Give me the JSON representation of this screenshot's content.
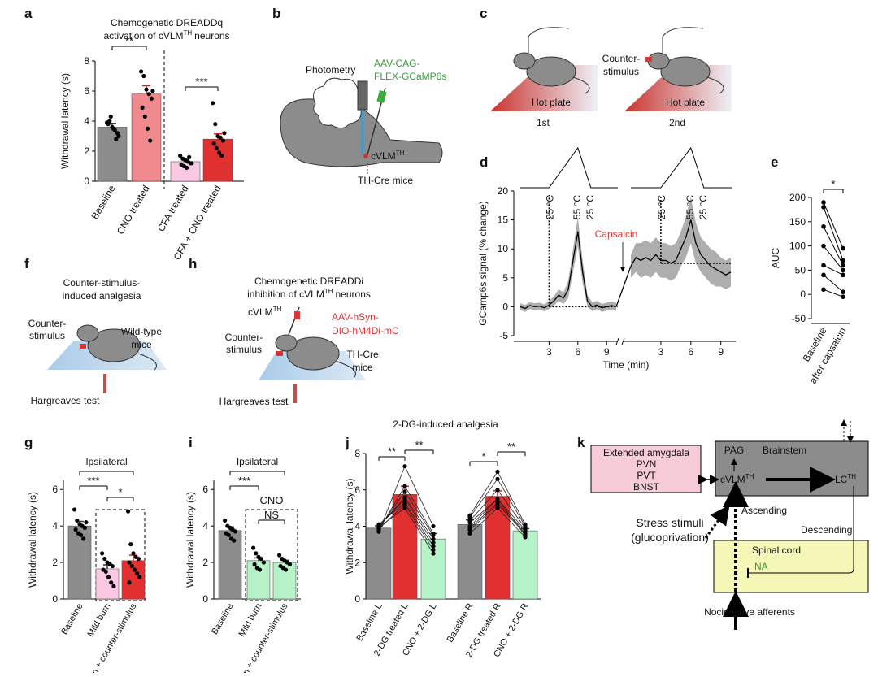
{
  "chart_data": [
    {
      "type": "bar",
      "panel": "a",
      "title": [
        "Chemogenetic DREADDq",
        "activation of cVLM",
        "TH",
        "neurons"
      ],
      "ylabel": "Withdrawal latency (s)",
      "categories": [
        "Baseline",
        "CNO treated",
        "CFA treated",
        "CFA + CNO treated"
      ],
      "values": [
        3.6,
        5.8,
        1.3,
        2.8
      ],
      "errors": [
        0.25,
        0.55,
        0.15,
        0.35
      ],
      "colors": [
        "#8c8c8c",
        "#f08a8f",
        "#f9c9e3",
        "#e0302f"
      ],
      "points": [
        [
          3.9,
          4.0,
          3.6,
          3.4,
          3.2,
          3.8,
          4.3,
          3.5,
          2.8,
          3.0
        ],
        [
          7.3,
          7.0,
          6.1,
          5.8,
          5.5,
          4.9,
          4.3,
          3.5,
          2.7,
          6.0
        ],
        [
          1.7,
          1.5,
          1.4,
          1.3,
          1.2,
          1.1,
          1.0,
          0.9,
          1.6,
          1.2
        ],
        [
          5.2,
          3.8,
          3.0,
          2.9,
          2.7,
          2.5,
          2.2,
          1.9,
          1.7,
          3.2
        ]
      ],
      "ylim": [
        0,
        8
      ],
      "yticks": [
        0,
        2,
        4,
        6,
        8
      ],
      "annotations": [
        "**",
        "***"
      ]
    },
    {
      "type": "line",
      "panel": "d",
      "ylabel": "GCamp6s signal (% change)",
      "xlabel": "Time (min)",
      "xlim": [
        0,
        10
      ],
      "xticks": [
        3,
        6,
        9
      ],
      "ylim": [
        -5,
        20
      ],
      "yticks": [
        -5,
        0,
        5,
        10,
        15,
        20
      ],
      "color": "#000000",
      "band_color": "#9a9a9a",
      "annotation": "Capsaicin",
      "segments": [
        {
          "labels": [
            "25 °C",
            "55 °C",
            "25 °C"
          ],
          "x": [
            0,
            0.5,
            1,
            1.5,
            2,
            2.5,
            3,
            3.5,
            4,
            4.5,
            5,
            5.5,
            6,
            6.5,
            7,
            7.5,
            8,
            8.5,
            9,
            9.5,
            10
          ],
          "values": [
            0,
            -0.3,
            0.2,
            0,
            0.1,
            -0.2,
            0.3,
            1,
            2,
            1.5,
            3,
            8,
            13,
            6,
            1,
            0,
            0.3,
            -0.2,
            0,
            0.2,
            0
          ],
          "sem": [
            0.6,
            0.6,
            0.6,
            0.6,
            0.6,
            0.6,
            0.7,
            0.8,
            1,
            1,
            1.5,
            2,
            2.5,
            2,
            1,
            0.8,
            0.7,
            0.7,
            0.7,
            0.7,
            0.7
          ]
        },
        {
          "labels": [
            "25 °C",
            "55 °C",
            "25 °C"
          ],
          "x": [
            0,
            0.5,
            1,
            1.5,
            2,
            2.5,
            3,
            3.5,
            4,
            4.5,
            5,
            5.5,
            6,
            6.5,
            7,
            7.5,
            8,
            8.5,
            9,
            9.5,
            10
          ],
          "values": [
            7,
            8.5,
            8,
            8.5,
            8,
            9,
            8,
            8,
            7.5,
            8,
            10,
            12,
            15,
            11,
            9,
            8,
            7,
            6.5,
            6,
            5.5,
            6
          ],
          "sem": [
            2,
            2.5,
            3,
            3,
            3,
            3,
            3,
            3,
            3,
            3,
            3,
            3.5,
            4,
            3.5,
            3,
            3,
            3,
            3,
            2.5,
            2.5,
            2.5
          ]
        }
      ]
    },
    {
      "type": "slope",
      "panel": "e",
      "ylabel": "AUC",
      "categories": [
        "Baseline",
        "after capsaicin"
      ],
      "pairs": [
        [
          190,
          95
        ],
        [
          180,
          70
        ],
        [
          140,
          60
        ],
        [
          100,
          50
        ],
        [
          60,
          40
        ],
        [
          40,
          5
        ],
        [
          10,
          -5
        ]
      ],
      "ylim": [
        -50,
        200
      ],
      "yticks": [
        -50,
        0,
        50,
        100,
        150,
        200
      ],
      "annotation": "*"
    },
    {
      "type": "bar",
      "panel": "g",
      "title": "Ipsilateral",
      "ylabel": "Withdrawal latency (s)",
      "categories": [
        "Baseline",
        "Mild burn",
        "Mild burn + counter-stimulus"
      ],
      "values": [
        4.0,
        1.65,
        2.1
      ],
      "errors": [
        0.25,
        0.22,
        0.3
      ],
      "colors": [
        "#8c8c8c",
        "#f9c9e3",
        "#e0302f"
      ],
      "points": [
        [
          4.9,
          4.3,
          4.1,
          4.0,
          3.9,
          3.8,
          3.6,
          3.5,
          3.3,
          4.2
        ],
        [
          2.5,
          2.2,
          2.0,
          1.9,
          1.8,
          1.6,
          1.5,
          1.2,
          0.9,
          0.7
        ],
        [
          4.8,
          3.0,
          2.5,
          2.3,
          2.2,
          2.0,
          1.8,
          1.6,
          1.4,
          1.2,
          0.9
        ]
      ],
      "ylim": [
        0,
        6.5
      ],
      "yticks": [
        0,
        2,
        4,
        6
      ],
      "annotations": [
        "***",
        "*"
      ]
    },
    {
      "type": "bar",
      "panel": "i",
      "title": "Ipsilateral",
      "ylabel": "Withdrawal latency (s)",
      "categories": [
        "Baseline",
        "Mild burn",
        "Mild burn + counter-stimulus"
      ],
      "values": [
        3.75,
        2.1,
        2.0
      ],
      "errors": [
        0.2,
        0.15,
        0.12
      ],
      "colors": [
        "#8c8c8c",
        "#b6f2c8",
        "#b6f2c8"
      ],
      "points": [
        [
          4.3,
          4.0,
          3.9,
          3.8,
          3.7,
          3.6,
          3.5,
          3.3,
          3.2
        ],
        [
          2.8,
          2.5,
          2.3,
          2.2,
          2.0,
          1.9,
          1.7,
          1.6
        ],
        [
          2.4,
          2.2,
          2.1,
          2.0,
          1.9,
          1.8,
          1.7,
          1.6
        ]
      ],
      "ylim": [
        0,
        6.5
      ],
      "yticks": [
        0,
        2,
        4,
        6
      ],
      "annotations": [
        "***",
        "NS",
        "CNO"
      ]
    },
    {
      "type": "bar",
      "panel": "j",
      "title": "2-DG-induced analgesia",
      "ylabel": "Withdrawal latency (s)",
      "categories": [
        "Baseline L",
        "2-DG treated L",
        "CNO + 2-DG L",
        "Baseline R",
        "2-DG treated R",
        "CNO + 2-DG R"
      ],
      "values": [
        3.9,
        5.75,
        3.3,
        4.1,
        5.65,
        3.75
      ],
      "errors": [
        0.12,
        0.45,
        0.3,
        0.25,
        0.3,
        0.12
      ],
      "colors": [
        "#8c8c8c",
        "#e0302f",
        "#b6f2c8",
        "#8c8c8c",
        "#e0302f",
        "#b6f2c8"
      ],
      "points": [
        [
          3.7,
          3.8,
          3.9,
          4.0,
          4.0,
          4.1,
          3.85,
          3.95
        ],
        [
          7.3,
          6.2,
          5.9,
          5.6,
          5.5,
          5.3,
          5.2,
          5.0
        ],
        [
          4.0,
          3.6,
          3.5,
          3.3,
          3.1,
          2.9,
          2.7,
          2.5
        ],
        [
          4.6,
          4.5,
          4.3,
          4.0,
          3.9,
          3.8,
          4.2,
          3.6
        ],
        [
          7.0,
          6.6,
          6.0,
          5.5,
          5.3,
          5.2,
          5.5,
          5.0
        ],
        [
          4.1,
          4.0,
          3.9,
          3.8,
          3.7,
          3.6,
          3.5,
          3.4
        ]
      ],
      "ylim": [
        0,
        8
      ],
      "yticks": [
        0,
        2,
        4,
        6,
        8
      ],
      "annotations": [
        "**",
        "**",
        "*",
        "**"
      ]
    }
  ],
  "panels": {
    "b": {
      "letter": "b",
      "photometry": "Photometry",
      "virus": [
        "AAV-CAG-",
        "FLEX-GCaMP6s"
      ],
      "neuron": [
        "cVLM",
        "TH"
      ],
      "mice": "TH-Cre mice"
    },
    "c": {
      "letter": "c",
      "plate": [
        "Hot plate",
        "Hot plate"
      ],
      "trial": [
        "1st",
        "2nd"
      ],
      "stimulus": [
        "Counter-",
        "stimulus"
      ]
    },
    "f": {
      "letter": "f",
      "title": [
        "Counter-stimulus-",
        "induced analgesia"
      ],
      "stimulus": [
        "Counter-",
        "stimulus"
      ],
      "mice": [
        "Wild-type",
        "mice"
      ],
      "test": "Hargreaves test"
    },
    "h": {
      "letter": "h",
      "title": [
        "Chemogenetic DREADDi",
        "inhibition of cVLM",
        "TH",
        "neurons"
      ],
      "neuron": [
        "cVLM",
        "TH"
      ],
      "virus": [
        "AAV-hSyn-",
        "DIO-hM4Di-mC"
      ],
      "stimulus": [
        "Counter-",
        "stimulus"
      ],
      "mice": [
        "TH-Cre",
        "mice"
      ],
      "test": "Hargreaves test"
    },
    "k": {
      "letter": "k",
      "amygdala": [
        "Extended amygdala",
        "PVN",
        "PVT",
        "BNST"
      ],
      "brainstem": [
        "PAG",
        "Brainstem"
      ],
      "cvlm": [
        "cVLM",
        "TH"
      ],
      "lc": [
        "LC",
        "TH"
      ],
      "stress": [
        "Stress stimuli",
        "(glucoprivation)"
      ],
      "ascending": "Ascending",
      "descending": "Descending",
      "spinal": "Spinal cord",
      "na": "NA",
      "afferents": "Nociceptive afferents"
    }
  }
}
